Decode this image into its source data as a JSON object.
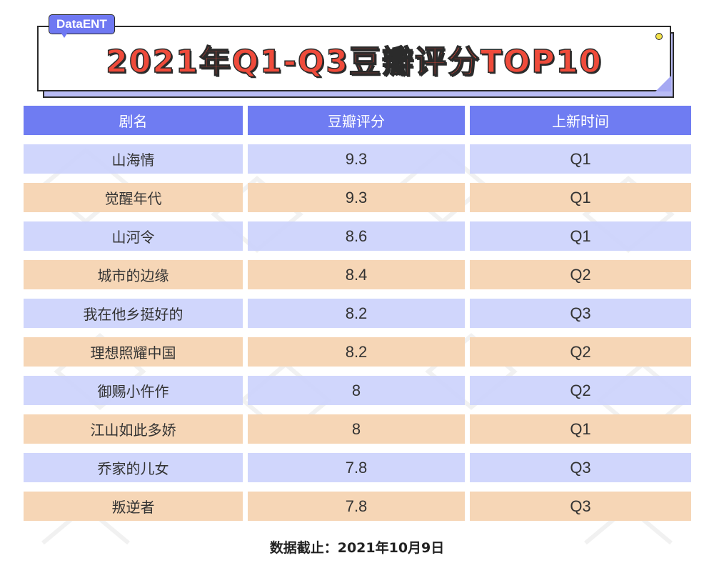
{
  "tag": "DataENT",
  "title": "2021年Q1-Q3豆瓣评分TOP10",
  "colors": {
    "header": "#6f7cf2",
    "row_odd": "#ccd2fc",
    "row_even": "#f5d4b2",
    "title": "#ef4b3b",
    "tag": "#6f78f2"
  },
  "table": {
    "headers": [
      "剧名",
      "豆瓣评分",
      "上新时间"
    ],
    "rows": [
      [
        "山海情",
        "9.3",
        "Q1"
      ],
      [
        "觉醒年代",
        "9.3",
        "Q1"
      ],
      [
        "山河令",
        "8.6",
        "Q1"
      ],
      [
        "城市的边缘",
        "8.4",
        "Q2"
      ],
      [
        "我在他乡挺好的",
        "8.2",
        "Q3"
      ],
      [
        "理想照耀中国",
        "8.2",
        "Q2"
      ],
      [
        "御赐小仵作",
        "8",
        "Q2"
      ],
      [
        "江山如此多娇",
        "8",
        "Q1"
      ],
      [
        "乔家的儿女",
        "7.8",
        "Q3"
      ],
      [
        "叛逆者",
        "7.8",
        "Q3"
      ]
    ]
  },
  "footer": "数据截止：2021年10月9日"
}
